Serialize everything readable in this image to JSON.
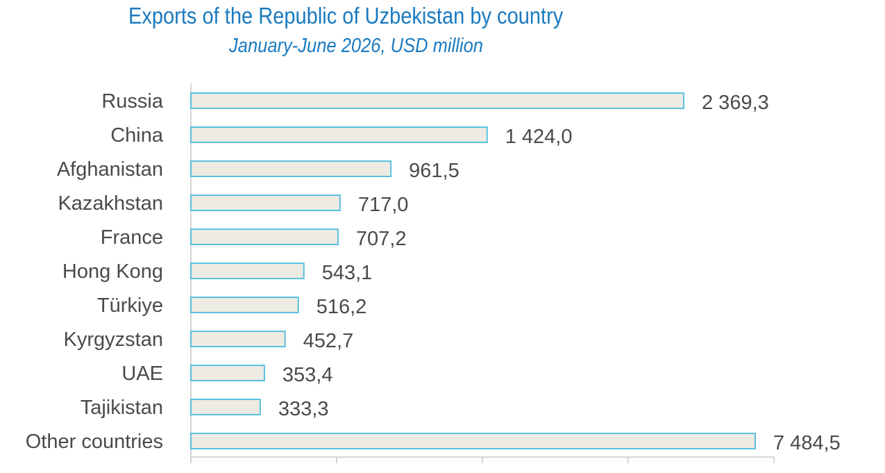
{
  "chart_data": {
    "type": "bar",
    "orientation": "horizontal",
    "title": "Exports of the Republic of Uzbekistan by country",
    "subtitle": "January-June 2026, USD million",
    "categories": [
      "Russia",
      "China",
      "Afghanistan",
      "Kazakhstan",
      "France",
      "Hong Kong",
      "Türkiye",
      "Kyrgyzstan",
      "UAE",
      "Tajikistan",
      "Other countries"
    ],
    "values": [
      2369.3,
      1424.0,
      961.5,
      717.0,
      707.2,
      543.1,
      516.2,
      452.7,
      353.4,
      333.3,
      7484.5
    ],
    "value_labels": [
      "2 369,3",
      "1 424,0",
      "961,5",
      "717,0",
      "707,2",
      "543,1",
      "516,2",
      "452,7",
      "353,4",
      "333,3",
      "7 484,5"
    ],
    "bar_fill": "#edebe2",
    "bar_stroke": "#5bc0de",
    "title_color": "#1a7abf",
    "grid": false,
    "legend": "none"
  }
}
